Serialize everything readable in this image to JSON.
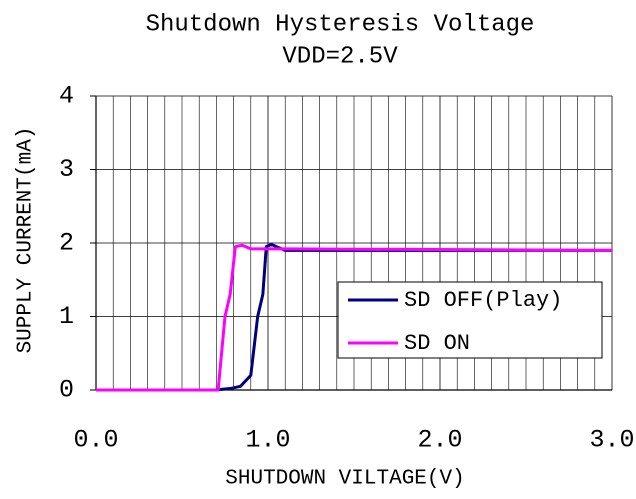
{
  "chart_data": {
    "type": "line",
    "title": "Shutdown Hysteresis Voltage",
    "subtitle": "VDD=2.5V",
    "x_label": "SHUTDOWN VILTAGE(V)",
    "y_label": "SUPPLY CURRENT(mA)",
    "xlim": [
      0,
      3
    ],
    "ylim": [
      0,
      4
    ],
    "xticks": [
      {
        "value": 0,
        "label": "0.0"
      },
      {
        "value": 1,
        "label": "1.0"
      },
      {
        "value": 2,
        "label": "2.0"
      },
      {
        "value": 3,
        "label": "3.0"
      }
    ],
    "yticks": [
      0,
      1,
      2,
      3,
      4
    ],
    "grid": true,
    "minor_grid_divisions": 10,
    "legend": "lower right",
    "series": [
      {
        "name": "SD OFF(Play)",
        "color": "#000080",
        "x": [
          0,
          0.69,
          0.78,
          0.84,
          0.9,
          0.94,
          0.97,
          0.99,
          1.02,
          1.1,
          3.0
        ],
        "values": [
          0,
          0,
          0.02,
          0.05,
          0.2,
          1.0,
          1.3,
          1.95,
          1.98,
          1.9,
          1.9
        ]
      },
      {
        "name": "SD ON",
        "color": "#ff00ff",
        "x": [
          0,
          0.71,
          0.75,
          0.78,
          0.81,
          0.85,
          0.9,
          1.1,
          3.0
        ],
        "values": [
          0,
          0,
          1.0,
          1.3,
          1.95,
          1.97,
          1.92,
          1.92,
          1.9
        ]
      }
    ]
  }
}
